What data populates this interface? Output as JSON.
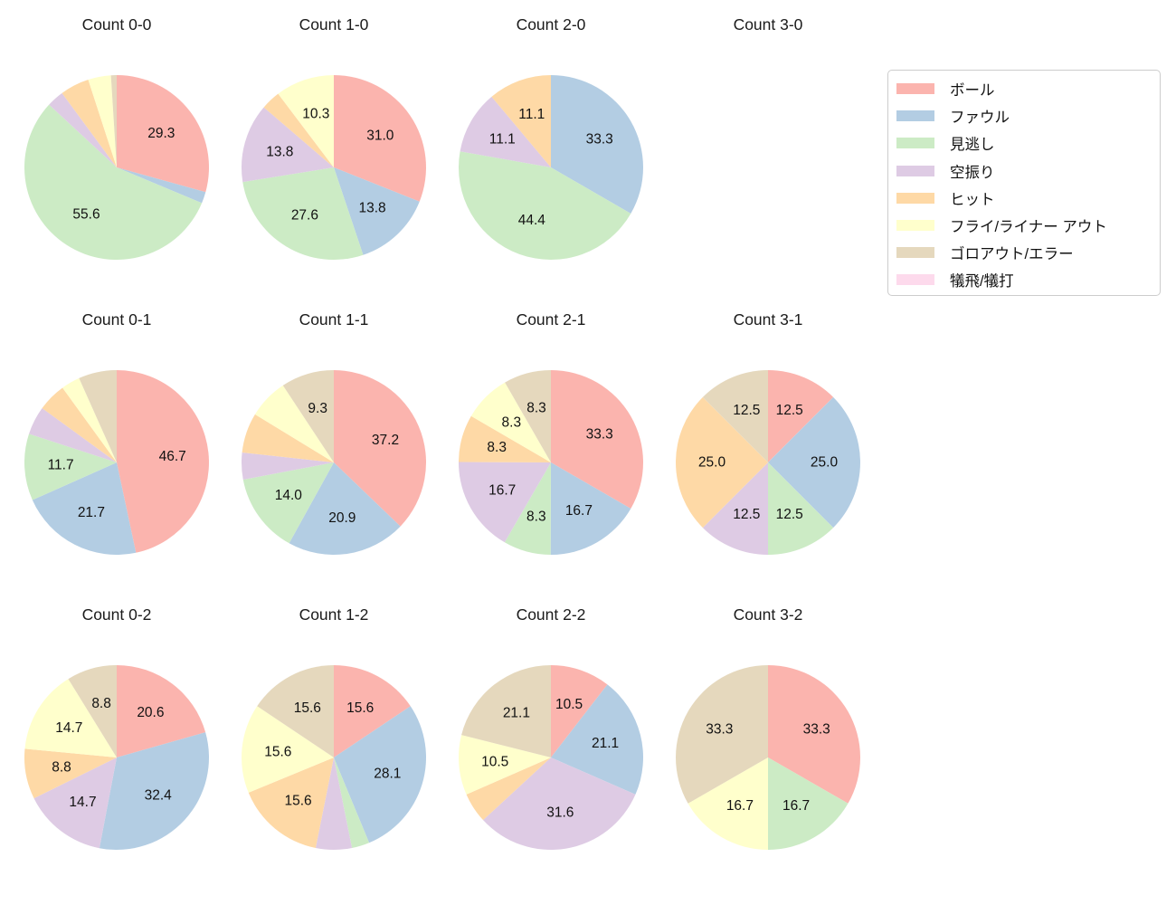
{
  "figure": {
    "background_color": "#ffffff",
    "text_color": "#111111",
    "legend_border_color": "#cccccc"
  },
  "legend": {
    "position": "top-right",
    "items": [
      {
        "label": "ボール",
        "color": "#fbb4ae"
      },
      {
        "label": "ファウル",
        "color": "#b3cde3"
      },
      {
        "label": "見逃し",
        "color": "#ccebc5"
      },
      {
        "label": "空振り",
        "color": "#decbe4"
      },
      {
        "label": "ヒット",
        "color": "#fed9a6"
      },
      {
        "label": "フライ/ライナー アウト",
        "color": "#ffffcc"
      },
      {
        "label": "ゴロアウト/エラー",
        "color": "#e5d8bd"
      },
      {
        "label": "犠飛/犠打",
        "color": "#fddaec"
      }
    ]
  },
  "chart_data": [
    {
      "type": "pie",
      "title": "Count 0-0",
      "row": 0,
      "col": 0,
      "start_angle_deg": 0,
      "direction": "clockwise",
      "values_are": "percent",
      "slices": [
        {
          "category": "ボール",
          "color": "#fbb4ae",
          "value": 29.3,
          "label": "29.3"
        },
        {
          "category": "ファウル",
          "color": "#b3cde3",
          "value": 2.0,
          "label": null
        },
        {
          "category": "見逃し",
          "color": "#ccebc5",
          "value": 55.6,
          "label": "55.6"
        },
        {
          "category": "空振り",
          "color": "#decbe4",
          "value": 3.0,
          "label": null
        },
        {
          "category": "ヒット",
          "color": "#fed9a6",
          "value": 5.1,
          "label": null
        },
        {
          "category": "フライ/ライナー アウト",
          "color": "#ffffcc",
          "value": 4.0,
          "label": null
        },
        {
          "category": "ゴロアウト/エラー",
          "color": "#e5d8bd",
          "value": 1.0,
          "label": null
        }
      ]
    },
    {
      "type": "pie",
      "title": "Count 1-0",
      "row": 0,
      "col": 1,
      "start_angle_deg": 0,
      "direction": "clockwise",
      "values_are": "percent",
      "slices": [
        {
          "category": "ボール",
          "color": "#fbb4ae",
          "value": 31.0,
          "label": "31.0"
        },
        {
          "category": "ファウル",
          "color": "#b3cde3",
          "value": 13.8,
          "label": "13.8"
        },
        {
          "category": "見逃し",
          "color": "#ccebc5",
          "value": 27.6,
          "label": "27.6"
        },
        {
          "category": "空振り",
          "color": "#decbe4",
          "value": 13.8,
          "label": "13.8"
        },
        {
          "category": "ヒット",
          "color": "#fed9a6",
          "value": 3.4,
          "label": null
        },
        {
          "category": "フライ/ライナー アウト",
          "color": "#ffffcc",
          "value": 10.3,
          "label": "10.3"
        }
      ]
    },
    {
      "type": "pie",
      "title": "Count 2-0",
      "row": 0,
      "col": 2,
      "start_angle_deg": 0,
      "direction": "clockwise",
      "values_are": "percent",
      "slices": [
        {
          "category": "ファウル",
          "color": "#b3cde3",
          "value": 33.3,
          "label": "33.3"
        },
        {
          "category": "見逃し",
          "color": "#ccebc5",
          "value": 44.4,
          "label": "44.4"
        },
        {
          "category": "空振り",
          "color": "#decbe4",
          "value": 11.1,
          "label": "11.1"
        },
        {
          "category": "ヒット",
          "color": "#fed9a6",
          "value": 11.1,
          "label": "11.1"
        }
      ]
    },
    {
      "type": "pie",
      "title": "Count 3-0",
      "row": 0,
      "col": 3,
      "start_angle_deg": 0,
      "direction": "clockwise",
      "values_are": "percent",
      "slices": []
    },
    {
      "type": "pie",
      "title": "Count 0-1",
      "row": 1,
      "col": 0,
      "start_angle_deg": 0,
      "direction": "clockwise",
      "values_are": "percent",
      "slices": [
        {
          "category": "ボール",
          "color": "#fbb4ae",
          "value": 46.7,
          "label": "46.7"
        },
        {
          "category": "ファウル",
          "color": "#b3cde3",
          "value": 21.7,
          "label": "21.7"
        },
        {
          "category": "見逃し",
          "color": "#ccebc5",
          "value": 11.7,
          "label": "11.7"
        },
        {
          "category": "空振り",
          "color": "#decbe4",
          "value": 5.0,
          "label": null
        },
        {
          "category": "ヒット",
          "color": "#fed9a6",
          "value": 5.0,
          "label": null
        },
        {
          "category": "フライ/ライナー アウト",
          "color": "#ffffcc",
          "value": 3.3,
          "label": null
        },
        {
          "category": "ゴロアウト/エラー",
          "color": "#e5d8bd",
          "value": 6.7,
          "label": null
        }
      ]
    },
    {
      "type": "pie",
      "title": "Count 1-1",
      "row": 1,
      "col": 1,
      "start_angle_deg": 0,
      "direction": "clockwise",
      "values_are": "percent",
      "slices": [
        {
          "category": "ボール",
          "color": "#fbb4ae",
          "value": 37.2,
          "label": "37.2"
        },
        {
          "category": "ファウル",
          "color": "#b3cde3",
          "value": 20.9,
          "label": "20.9"
        },
        {
          "category": "見逃し",
          "color": "#ccebc5",
          "value": 14.0,
          "label": "14.0"
        },
        {
          "category": "空振り",
          "color": "#decbe4",
          "value": 4.7,
          "label": null
        },
        {
          "category": "ヒット",
          "color": "#fed9a6",
          "value": 7.0,
          "label": null
        },
        {
          "category": "フライ/ライナー アウト",
          "color": "#ffffcc",
          "value": 7.0,
          "label": null
        },
        {
          "category": "ゴロアウト/エラー",
          "color": "#e5d8bd",
          "value": 9.3,
          "label": "9.3"
        }
      ]
    },
    {
      "type": "pie",
      "title": "Count 2-1",
      "row": 1,
      "col": 2,
      "start_angle_deg": 0,
      "direction": "clockwise",
      "values_are": "percent",
      "slices": [
        {
          "category": "ボール",
          "color": "#fbb4ae",
          "value": 33.3,
          "label": "33.3"
        },
        {
          "category": "ファウル",
          "color": "#b3cde3",
          "value": 16.7,
          "label": "16.7"
        },
        {
          "category": "見逃し",
          "color": "#ccebc5",
          "value": 8.3,
          "label": "8.3"
        },
        {
          "category": "空振り",
          "color": "#decbe4",
          "value": 16.7,
          "label": "16.7"
        },
        {
          "category": "ヒット",
          "color": "#fed9a6",
          "value": 8.3,
          "label": "8.3"
        },
        {
          "category": "フライ/ライナー アウト",
          "color": "#ffffcc",
          "value": 8.3,
          "label": "8.3"
        },
        {
          "category": "ゴロアウト/エラー",
          "color": "#e5d8bd",
          "value": 8.3,
          "label": "8.3"
        }
      ]
    },
    {
      "type": "pie",
      "title": "Count 3-1",
      "row": 1,
      "col": 3,
      "start_angle_deg": 0,
      "direction": "clockwise",
      "values_are": "percent",
      "slices": [
        {
          "category": "ボール",
          "color": "#fbb4ae",
          "value": 12.5,
          "label": "12.5"
        },
        {
          "category": "ファウル",
          "color": "#b3cde3",
          "value": 25.0,
          "label": "25.0"
        },
        {
          "category": "見逃し",
          "color": "#ccebc5",
          "value": 12.5,
          "label": "12.5"
        },
        {
          "category": "空振り",
          "color": "#decbe4",
          "value": 12.5,
          "label": "12.5"
        },
        {
          "category": "ヒット",
          "color": "#fed9a6",
          "value": 25.0,
          "label": "25.0"
        },
        {
          "category": "ゴロアウト/エラー",
          "color": "#e5d8bd",
          "value": 12.5,
          "label": "12.5"
        }
      ]
    },
    {
      "type": "pie",
      "title": "Count 0-2",
      "row": 2,
      "col": 0,
      "start_angle_deg": 0,
      "direction": "clockwise",
      "values_are": "percent",
      "slices": [
        {
          "category": "ボール",
          "color": "#fbb4ae",
          "value": 20.6,
          "label": "20.6"
        },
        {
          "category": "ファウル",
          "color": "#b3cde3",
          "value": 32.4,
          "label": "32.4"
        },
        {
          "category": "空振り",
          "color": "#decbe4",
          "value": 14.7,
          "label": "14.7"
        },
        {
          "category": "ヒット",
          "color": "#fed9a6",
          "value": 8.8,
          "label": "8.8"
        },
        {
          "category": "フライ/ライナー アウト",
          "color": "#ffffcc",
          "value": 14.7,
          "label": "14.7"
        },
        {
          "category": "ゴロアウト/エラー",
          "color": "#e5d8bd",
          "value": 8.8,
          "label": "8.8"
        }
      ]
    },
    {
      "type": "pie",
      "title": "Count 1-2",
      "row": 2,
      "col": 1,
      "start_angle_deg": 0,
      "direction": "clockwise",
      "values_are": "percent",
      "slices": [
        {
          "category": "ボール",
          "color": "#fbb4ae",
          "value": 15.6,
          "label": "15.6"
        },
        {
          "category": "ファウル",
          "color": "#b3cde3",
          "value": 28.1,
          "label": "28.1"
        },
        {
          "category": "見逃し",
          "color": "#ccebc5",
          "value": 3.1,
          "label": null
        },
        {
          "category": "空振り",
          "color": "#decbe4",
          "value": 6.3,
          "label": null
        },
        {
          "category": "ヒット",
          "color": "#fed9a6",
          "value": 15.6,
          "label": "15.6"
        },
        {
          "category": "フライ/ライナー アウト",
          "color": "#ffffcc",
          "value": 15.6,
          "label": "15.6"
        },
        {
          "category": "ゴロアウト/エラー",
          "color": "#e5d8bd",
          "value": 15.6,
          "label": "15.6"
        }
      ]
    },
    {
      "type": "pie",
      "title": "Count 2-2",
      "row": 2,
      "col": 2,
      "start_angle_deg": 0,
      "direction": "clockwise",
      "values_are": "percent",
      "slices": [
        {
          "category": "ボール",
          "color": "#fbb4ae",
          "value": 10.5,
          "label": "10.5"
        },
        {
          "category": "ファウル",
          "color": "#b3cde3",
          "value": 21.1,
          "label": "21.1"
        },
        {
          "category": "空振り",
          "color": "#decbe4",
          "value": 31.6,
          "label": "31.6"
        },
        {
          "category": "ヒット",
          "color": "#fed9a6",
          "value": 5.3,
          "label": null
        },
        {
          "category": "フライ/ライナー アウト",
          "color": "#ffffcc",
          "value": 10.5,
          "label": "10.5"
        },
        {
          "category": "ゴロアウト/エラー",
          "color": "#e5d8bd",
          "value": 21.1,
          "label": "21.1"
        }
      ]
    },
    {
      "type": "pie",
      "title": "Count 3-2",
      "row": 2,
      "col": 3,
      "start_angle_deg": 0,
      "direction": "clockwise",
      "values_are": "percent",
      "slices": [
        {
          "category": "ボール",
          "color": "#fbb4ae",
          "value": 33.3,
          "label": "33.3"
        },
        {
          "category": "見逃し",
          "color": "#ccebc5",
          "value": 16.7,
          "label": "16.7"
        },
        {
          "category": "フライ/ライナー アウト",
          "color": "#ffffcc",
          "value": 16.7,
          "label": "16.7"
        },
        {
          "category": "ゴロアウト/エラー",
          "color": "#e5d8bd",
          "value": 33.3,
          "label": "33.3"
        }
      ]
    }
  ]
}
